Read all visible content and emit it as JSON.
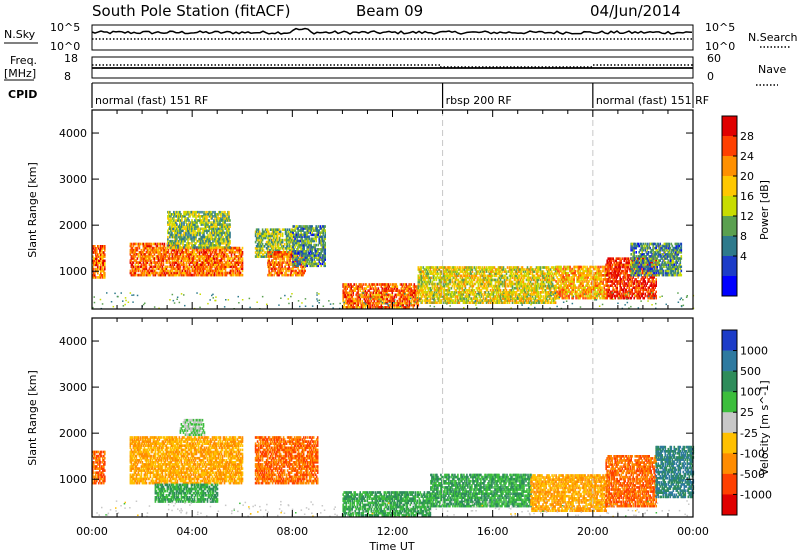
{
  "header": {
    "station": "South Pole Station (fitACF)",
    "beam": "Beam 09",
    "date": "04/Jun/2014"
  },
  "top_panels": {
    "nsky_label": "N.Sky",
    "nsky_ticks": [
      "10^5",
      "10^0"
    ],
    "nsearch_label": "N.Search",
    "nsearch_ticks": [
      "10^5",
      "10^0"
    ],
    "freq_label_1": "Freq.",
    "freq_label_2": "[MHz]",
    "freq_ticks": [
      "18",
      "8"
    ],
    "nave_label": "Nave",
    "nave_ticks": [
      "60",
      "0"
    ],
    "cpid_label": "CPID"
  },
  "cpid_segments": [
    {
      "label": "normal (fast) 151 RF",
      "start_hour": 0,
      "end_hour": 14
    },
    {
      "label": "rbsp 200 RF",
      "start_hour": 14,
      "end_hour": 20
    },
    {
      "label": "normal (fast) 151 RF",
      "start_hour": 20,
      "end_hour": 24
    }
  ],
  "axes": {
    "xlabel": "Time UT",
    "x_ticks": [
      "00:00",
      "04:00",
      "08:00",
      "12:00",
      "16:00",
      "20:00",
      "00:00"
    ],
    "ylabel": "Slant Range [km]",
    "y_ticks": [
      "1000",
      "2000",
      "3000",
      "4000"
    ]
  },
  "power_colorbar": {
    "label": "Power [dB]",
    "ticks": [
      "28",
      "24",
      "20",
      "16",
      "12",
      "8",
      "4"
    ],
    "colors": [
      "#e00000",
      "#ff4000",
      "#ff9000",
      "#ffc800",
      "#c8dc00",
      "#5aa050",
      "#2e7a8c",
      "#1c3cc8",
      "#0000ff"
    ]
  },
  "velocity_colorbar": {
    "label": "Velocity [m s^-1]",
    "ticks": [
      "1000",
      "500",
      "100",
      "25",
      "-25",
      "-100",
      "-500",
      "-1000"
    ],
    "colors": [
      "#1c3cc8",
      "#2e7aa0",
      "#2e8c5a",
      "#3cbe3c",
      "#c8c8c8",
      "#ffc000",
      "#ff8c00",
      "#ff4000",
      "#e00000"
    ]
  },
  "chart_data": {
    "type": "heatmap",
    "x_range_hours": [
      0,
      24
    ],
    "y_range_km": [
      180,
      4500
    ],
    "power_panel": {
      "series": [
        {
          "start_hour": 0.0,
          "end_hour": 0.5,
          "range_km": [
            850,
            1550
          ],
          "power_db": 24
        },
        {
          "start_hour": 1.5,
          "end_hour": 3.5,
          "range_km": [
            900,
            1600
          ],
          "power_db": 24
        },
        {
          "start_hour": 3.5,
          "end_hour": 6.0,
          "range_km": [
            900,
            1500
          ],
          "power_db": 24
        },
        {
          "start_hour": 3.0,
          "end_hour": 5.5,
          "range_km": [
            1500,
            2300
          ],
          "power_db": 12
        },
        {
          "start_hour": 6.5,
          "end_hour": 8.0,
          "range_km": [
            1300,
            1900
          ],
          "power_db": 12
        },
        {
          "start_hour": 7.0,
          "end_hour": 8.5,
          "range_km": [
            900,
            1400
          ],
          "power_db": 24
        },
        {
          "start_hour": 8.0,
          "end_hour": 9.3,
          "range_km": [
            1100,
            2000
          ],
          "power_db": 8
        },
        {
          "start_hour": 10.0,
          "end_hour": 13.0,
          "range_km": [
            200,
            700
          ],
          "power_db": 24
        },
        {
          "start_hour": 13.0,
          "end_hour": 18.5,
          "range_km": [
            300,
            1100
          ],
          "power_db": 16
        },
        {
          "start_hour": 18.5,
          "end_hour": 20.5,
          "range_km": [
            400,
            1100
          ],
          "power_db": 20
        },
        {
          "start_hour": 20.5,
          "end_hour": 22.5,
          "range_km": [
            400,
            1300
          ],
          "power_db": 28
        },
        {
          "start_hour": 21.5,
          "end_hour": 23.5,
          "range_km": [
            900,
            1600
          ],
          "power_db": 8
        }
      ]
    },
    "velocity_panel": {
      "series": [
        {
          "start_hour": 0.0,
          "end_hour": 0.5,
          "range_km": [
            900,
            1600
          ],
          "velocity": -500
        },
        {
          "start_hour": 1.5,
          "end_hour": 6.0,
          "range_km": [
            900,
            1900
          ],
          "velocity": -100
        },
        {
          "start_hour": 6.5,
          "end_hour": 9.0,
          "range_km": [
            900,
            1900
          ],
          "velocity": -500
        },
        {
          "start_hour": 2.5,
          "end_hour": 5.0,
          "range_km": [
            500,
            900
          ],
          "velocity": 100
        },
        {
          "start_hour": 3.5,
          "end_hour": 4.5,
          "range_km": [
            1950,
            2300
          ],
          "velocity": 25
        },
        {
          "start_hour": 10.0,
          "end_hour": 13.5,
          "range_km": [
            200,
            700
          ],
          "velocity": 100
        },
        {
          "start_hour": 13.5,
          "end_hour": 17.5,
          "range_km": [
            400,
            1100
          ],
          "velocity": 100
        },
        {
          "start_hour": 17.5,
          "end_hour": 20.5,
          "range_km": [
            300,
            1100
          ],
          "velocity": -100
        },
        {
          "start_hour": 20.5,
          "end_hour": 22.5,
          "range_km": [
            400,
            1500
          ],
          "velocity": -500
        },
        {
          "start_hour": 22.5,
          "end_hour": 24.0,
          "range_km": [
            600,
            1700
          ],
          "velocity": 500
        }
      ]
    }
  }
}
